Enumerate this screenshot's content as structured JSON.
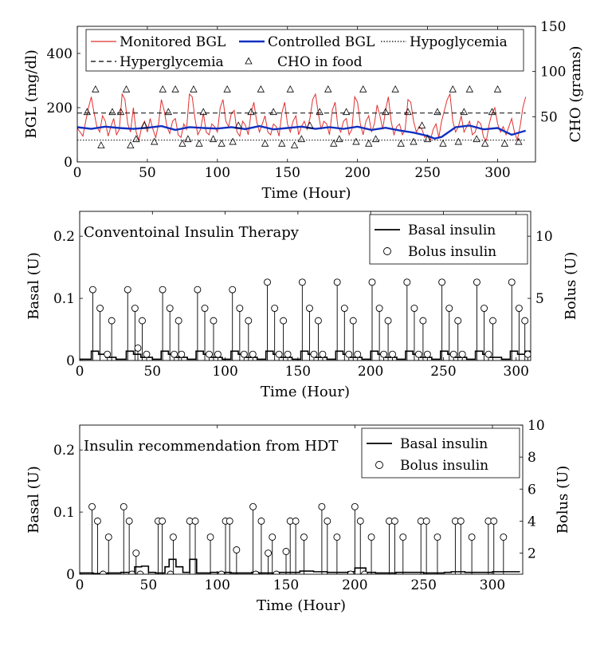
{
  "chart_data": [
    {
      "type": "line",
      "xlabel": "Time (Hour)",
      "ylabel": "BGL (mg/dl)",
      "y2label": "CHO (grams)",
      "xlim": [
        0,
        327
      ],
      "ylim": [
        0,
        500
      ],
      "y2lim": [
        0,
        150
      ],
      "xticks": [
        0,
        50,
        100,
        150,
        200,
        250,
        300
      ],
      "yticks": [
        0,
        200,
        400
      ],
      "y2ticks": [
        50,
        100,
        150
      ],
      "legend_position": "top",
      "series": [
        {
          "name": "Monitored BGL",
          "color": "#e03030",
          "x": [
            0,
            2,
            4,
            6,
            8,
            10,
            12,
            14,
            16,
            18,
            20,
            22,
            24,
            26,
            28,
            30,
            32,
            34,
            36,
            38,
            40,
            42,
            44,
            46,
            48,
            50,
            52,
            54,
            56,
            58,
            60,
            62,
            64,
            66,
            68,
            70,
            72,
            74,
            76,
            78,
            80,
            82,
            84,
            86,
            88,
            90,
            92,
            94,
            96,
            98,
            100,
            102,
            104,
            106,
            108,
            110,
            112,
            114,
            116,
            118,
            120,
            122,
            124,
            126,
            128,
            130,
            132,
            134,
            136,
            138,
            140,
            142,
            144,
            146,
            148,
            150,
            152,
            154,
            156,
            158,
            160,
            162,
            164,
            166,
            168,
            170,
            172,
            174,
            176,
            178,
            180,
            182,
            184,
            186,
            188,
            190,
            192,
            194,
            196,
            198,
            200,
            202,
            204,
            206,
            208,
            210,
            212,
            214,
            216,
            218,
            220,
            222,
            224,
            226,
            228,
            230,
            232,
            234,
            236,
            238,
            240,
            242,
            244,
            246,
            248,
            250,
            252,
            254,
            256,
            258,
            260,
            262,
            264,
            266,
            268,
            270,
            272,
            274,
            276,
            278,
            280,
            282,
            284,
            286,
            288,
            290,
            292,
            294,
            296,
            298,
            300,
            302,
            304,
            306,
            308,
            310,
            312,
            314,
            316,
            318,
            320
          ],
          "y": [
            125,
            110,
            95,
            150,
            200,
            240,
            180,
            130,
            110,
            170,
            150,
            95,
            130,
            160,
            100,
            120,
            250,
            230,
            140,
            110,
            200,
            110,
            80,
            130,
            150,
            110,
            160,
            120,
            90,
            140,
            230,
            190,
            130,
            105,
            150,
            160,
            100,
            90,
            140,
            120,
            250,
            240,
            160,
            100,
            120,
            180,
            110,
            100,
            140,
            130,
            110,
            200,
            230,
            150,
            130,
            180,
            190,
            110,
            95,
            150,
            135,
            100,
            180,
            220,
            150,
            110,
            140,
            170,
            110,
            100,
            140,
            130,
            95,
            180,
            220,
            140,
            110,
            150,
            170,
            100,
            130,
            150,
            120,
            160,
            230,
            250,
            180,
            120,
            150,
            140,
            100,
            190,
            220,
            130,
            110,
            150,
            160,
            100,
            120,
            240,
            220,
            140,
            100,
            150,
            170,
            110,
            140,
            210,
            170,
            120,
            190,
            240,
            150,
            100,
            130,
            140,
            100,
            120,
            230,
            220,
            150,
            110,
            130,
            120,
            90,
            100,
            80,
            120,
            140,
            90,
            150,
            190,
            230,
            250,
            150,
            110,
            130,
            170,
            110,
            130,
            150,
            100,
            110,
            150,
            140,
            90,
            80,
            140,
            180,
            200,
            140,
            110,
            130,
            100,
            130,
            160,
            110,
            80,
            130,
            200,
            240
          ],
          "line_style": "solid"
        },
        {
          "name": "Controlled BGL",
          "color": "#1030c0",
          "x": [
            0,
            10,
            20,
            30,
            40,
            50,
            60,
            70,
            80,
            90,
            100,
            110,
            120,
            130,
            140,
            150,
            160,
            170,
            180,
            190,
            200,
            210,
            220,
            230,
            240,
            250,
            255,
            260,
            270,
            280,
            290,
            300,
            310,
            320
          ],
          "y": [
            128,
            122,
            130,
            125,
            122,
            126,
            132,
            118,
            128,
            125,
            123,
            128,
            121,
            132,
            120,
            125,
            130,
            122,
            128,
            122,
            130,
            118,
            126,
            116,
            108,
            96,
            86,
            92,
            128,
            134,
            120,
            125,
            100,
            115
          ],
          "line_style": "solid"
        },
        {
          "name": "Hypoglycemia",
          "color": "#000000",
          "x": [
            0,
            320
          ],
          "y": [
            80,
            80
          ],
          "line_style": "dotted"
        },
        {
          "name": "Hyperglycemia",
          "color": "#000000",
          "x": [
            0,
            320
          ],
          "y": [
            180,
            180
          ],
          "line_style": "dashed"
        },
        {
          "name": "CHO in food",
          "color": "#000000",
          "axis": "right",
          "marker": "triangle",
          "x": [
            7,
            13,
            17,
            25,
            31,
            35,
            38,
            42,
            48,
            55,
            61,
            65,
            70,
            75,
            79,
            83,
            87,
            90,
            97,
            103,
            107,
            111,
            115,
            124,
            131,
            134,
            140,
            146,
            152,
            155,
            160,
            166,
            173,
            179,
            183,
            187,
            192,
            199,
            204,
            208,
            213,
            220,
            227,
            231,
            236,
            240,
            246,
            250,
            257,
            261,
            268,
            272,
            276,
            280,
            285,
            291,
            296,
            300,
            305,
            315
          ],
          "y": [
            55,
            80,
            18,
            55,
            55,
            80,
            18,
            25,
            40,
            22,
            80,
            55,
            80,
            20,
            25,
            80,
            20,
            55,
            25,
            20,
            80,
            22,
            40,
            55,
            80,
            20,
            55,
            20,
            80,
            18,
            25,
            40,
            55,
            80,
            20,
            25,
            55,
            22,
            80,
            20,
            25,
            55,
            80,
            20,
            55,
            22,
            40,
            25,
            55,
            20,
            80,
            22,
            55,
            80,
            25,
            20,
            55,
            80,
            20,
            22
          ]
        }
      ]
    },
    {
      "type": "line",
      "annotation": "Conventoinal Insulin Therapy",
      "xlabel": "Time (Hour)",
      "ylabel": "Basal (U)",
      "y2label": "Bolus (U)",
      "xlim": [
        0,
        310
      ],
      "ylim": [
        0,
        0.24
      ],
      "y2lim": [
        0,
        12
      ],
      "xticks": [
        0,
        50,
        100,
        150,
        200,
        250,
        300
      ],
      "yticks": [
        0,
        0.1,
        0.2
      ],
      "ytick_labels": [
        "0",
        "0.1",
        "0.2"
      ],
      "y2ticks": [
        5,
        10
      ],
      "legend_position": "top-right",
      "series": [
        {
          "name": "Basal insulin",
          "color": "#000000",
          "step": true,
          "x": [
            0,
            8,
            13,
            18,
            25,
            32,
            37,
            42,
            50,
            56,
            61,
            66,
            74,
            80,
            85,
            90,
            98,
            104,
            109,
            114,
            122,
            128,
            133,
            138,
            146,
            152,
            157,
            162,
            170,
            176,
            181,
            186,
            194,
            200,
            205,
            210,
            218,
            224,
            229,
            234,
            242,
            248,
            253,
            258,
            266,
            272,
            277,
            282,
            290,
            296,
            301,
            306,
            310
          ],
          "y": [
            0.002,
            0.015,
            0.01,
            0.005,
            0.002,
            0.015,
            0.01,
            0.005,
            0.002,
            0.015,
            0.01,
            0.005,
            0.002,
            0.015,
            0.01,
            0.005,
            0.002,
            0.015,
            0.01,
            0.005,
            0.002,
            0.015,
            0.01,
            0.005,
            0.002,
            0.015,
            0.01,
            0.005,
            0.002,
            0.015,
            0.01,
            0.005,
            0.002,
            0.015,
            0.01,
            0.005,
            0.002,
            0.015,
            0.01,
            0.005,
            0.002,
            0.015,
            0.01,
            0.005,
            0.002,
            0.015,
            0.01,
            0.005,
            0.002,
            0.015,
            0.01,
            0.015,
            0.015
          ]
        },
        {
          "name": "Bolus insulin",
          "color": "#000000",
          "axis": "right",
          "marker": "circle",
          "stem": true,
          "x": [
            9,
            14,
            19,
            22,
            33,
            38,
            40,
            43,
            46,
            57,
            62,
            65,
            68,
            70,
            81,
            86,
            89,
            92,
            95,
            105,
            110,
            113,
            116,
            119,
            129,
            134,
            137,
            140,
            143,
            153,
            158,
            161,
            164,
            167,
            177,
            182,
            185,
            188,
            191,
            201,
            206,
            209,
            212,
            215,
            225,
            230,
            233,
            236,
            239,
            249,
            254,
            257,
            260,
            263,
            273,
            278,
            281,
            284,
            297,
            302,
            306,
            308
          ],
          "y": [
            5.7,
            4.2,
            0.5,
            3.2,
            5.7,
            4.2,
            1.0,
            3.2,
            0.5,
            5.7,
            4.2,
            0.5,
            3.2,
            0.5,
            5.7,
            4.2,
            0.5,
            3.2,
            0.5,
            5.7,
            4.2,
            0.5,
            3.2,
            0.5,
            6.3,
            4.2,
            0.5,
            3.2,
            0.5,
            6.3,
            4.2,
            0.5,
            3.2,
            0.5,
            6.3,
            4.2,
            0.5,
            3.2,
            0.5,
            6.3,
            4.2,
            0.5,
            3.2,
            0.5,
            6.3,
            4.2,
            0.5,
            3.2,
            0.5,
            6.3,
            4.2,
            0.5,
            3.2,
            0.5,
            6.3,
            4.2,
            0.5,
            3.2,
            6.3,
            4.2,
            3.2,
            0.5
          ]
        }
      ]
    },
    {
      "type": "line",
      "annotation": "Insulin recommendation from HDT",
      "xlabel": "Time (Hour)",
      "ylabel": "Basal (U)",
      "y2label": "Bolus (U)",
      "xlim": [
        0,
        322
      ],
      "ylim": [
        0,
        0.24
      ],
      "y2lim": [
        0.68,
        10
      ],
      "xticks": [
        0,
        100,
        200,
        300
      ],
      "minor_xticks": [
        50,
        150,
        250
      ],
      "minor_xtick_labels": [
        "50",
        "150",
        "250"
      ],
      "yticks": [
        0,
        0.1,
        0.2
      ],
      "ytick_labels": [
        "0",
        "0.1",
        "0.2"
      ],
      "y2ticks": [
        2,
        4,
        6,
        8,
        10
      ],
      "legend_position": "top-right",
      "series": [
        {
          "name": "Basal insulin",
          "color": "#000000",
          "step": true,
          "x": [
            0,
            10,
            20,
            30,
            40,
            45,
            50,
            55,
            62,
            65,
            70,
            75,
            80,
            85,
            95,
            110,
            120,
            125,
            130,
            145,
            160,
            170,
            180,
            195,
            200,
            208,
            215,
            230,
            250,
            265,
            270,
            280,
            300,
            320
          ],
          "y": [
            0.002,
            0.001,
            0.002,
            0.003,
            0.012,
            0.013,
            0.003,
            0.002,
            0.012,
            0.024,
            0.012,
            0.003,
            0.024,
            0.002,
            0.003,
            0.002,
            0.002,
            0.003,
            0.002,
            0.003,
            0.005,
            0.004,
            0.003,
            0.004,
            0.01,
            0.003,
            0.002,
            0.003,
            0.002,
            0.003,
            0.004,
            0.003,
            0.004,
            0.004
          ]
        },
        {
          "name": "Bolus insulin",
          "color": "#000000",
          "axis": "right",
          "marker": "circle",
          "stem": true,
          "x": [
            9,
            13,
            17,
            21,
            32,
            36,
            38,
            41,
            44,
            57,
            60,
            66,
            68,
            80,
            84,
            95,
            103,
            106,
            109,
            114,
            126,
            128,
            132,
            137,
            140,
            143,
            150,
            153,
            157,
            163,
            176,
            180,
            187,
            197,
            200,
            204,
            207,
            212,
            225,
            229,
            235,
            248,
            252,
            260,
            273,
            277,
            285,
            297,
            301,
            308
          ],
          "y": [
            4.9,
            4.0,
            0.68,
            3.0,
            4.9,
            4.0,
            0.68,
            2.0,
            0.68,
            4.0,
            4.0,
            0.68,
            3.0,
            4.0,
            4.0,
            3.0,
            0.68,
            4.0,
            4.0,
            2.2,
            4.9,
            0.68,
            4.0,
            2.0,
            3.0,
            0.68,
            2.1,
            4.0,
            4.0,
            3.0,
            4.9,
            4.0,
            3.0,
            0.68,
            4.9,
            4.0,
            0.68,
            3.0,
            4.0,
            4.0,
            3.0,
            4.0,
            4.0,
            3.0,
            4.0,
            4.0,
            3.0,
            4.0,
            4.0,
            3.0
          ]
        }
      ]
    }
  ]
}
